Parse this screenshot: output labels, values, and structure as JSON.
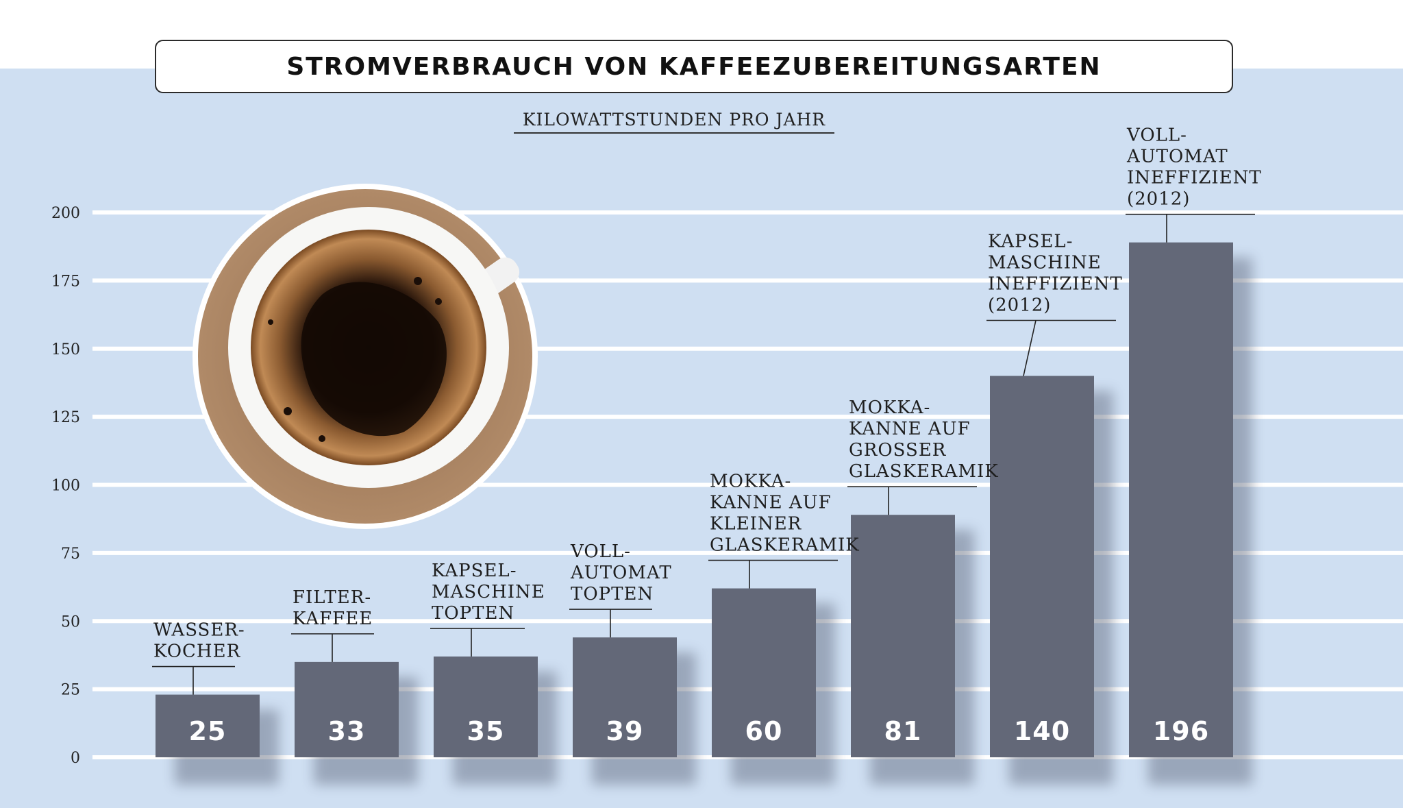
{
  "colors": {
    "background": "#cfdff2",
    "bar": "#636878",
    "gridline": "#ffffff",
    "text": "#1e1e1e"
  },
  "photo": {
    "icon": "coffee-cup-photo"
  },
  "chart_data": {
    "type": "bar",
    "title": "STROMVERBRAUCH VON KAFFEEZUBEREITUNGSARTEN",
    "subtitle": "KILOWATTSTUNDEN PRO JAHR",
    "ylim": [
      0,
      200
    ],
    "yticks": [
      "0",
      "25",
      "50",
      "75",
      "100",
      "125",
      "150",
      "175",
      "200"
    ],
    "grid": true,
    "categories": [
      [
        "WASSER-",
        "KOCHER"
      ],
      [
        "FILTER-",
        "KAFFEE"
      ],
      [
        "KAPSEL-",
        "MASCHINE",
        "TOPTEN"
      ],
      [
        "VOLL-",
        "AUTOMAT",
        "TOPTEN"
      ],
      [
        "MOKKA-",
        "KANNE AUF",
        "KLEINER",
        "GLASKERAMIK"
      ],
      [
        "MOKKA-",
        "KANNE AUF",
        "GROSSER",
        "GLASKERAMIK"
      ],
      [
        "KAPSEL-",
        "MASCHINE",
        "INEFFIZIENT",
        "(2012)"
      ],
      [
        "VOLL-",
        "AUTOMAT",
        "INEFFIZIENT",
        "(2012)"
      ]
    ],
    "values": [
      25,
      33,
      35,
      39,
      60,
      81,
      140,
      196
    ],
    "bar_heights": [
      23,
      35,
      37,
      44,
      62,
      89,
      140,
      189
    ]
  }
}
